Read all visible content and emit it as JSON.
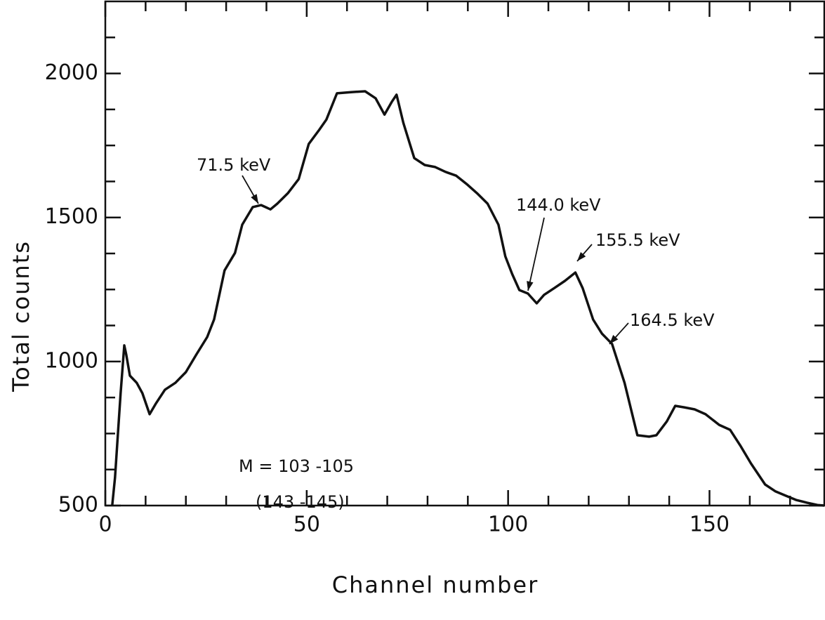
{
  "chart_data": {
    "type": "line",
    "x_label": "Channel number",
    "y_label": "Total counts",
    "annotations": [
      "71.5 keV",
      "144.0 keV",
      "155.5 keV",
      "164.5 keV",
      "M = 103 -105",
      "(143 -145)"
    ],
    "x": [
      1.7,
      2.4,
      3.1,
      3.8,
      4.7,
      5.2,
      6.1,
      7.8,
      9.2,
      11.0,
      12.5,
      14.8,
      17.4,
      20.0,
      22.6,
      25.3,
      27.0,
      29.6,
      32.2,
      34.0,
      36.6,
      38.7,
      41.0,
      42.7,
      45.3,
      48.0,
      50.5,
      53.1,
      54.9,
      57.5,
      61.0,
      64.5,
      67.1,
      69.3,
      71.1,
      72.3,
      74.0,
      76.7,
      79.3,
      81.9,
      84.5,
      87.1,
      89.7,
      92.3,
      94.9,
      97.6,
      99.3,
      101.0,
      102.8,
      104.9,
      107.1,
      108.9,
      111.5,
      114.1,
      116.7,
      118.5,
      121.1,
      123.3,
      125.8,
      128.9,
      132.1,
      135.0,
      136.8,
      139.4,
      141.5,
      143.7,
      146.3,
      149.0,
      152.4,
      155.1,
      157.7,
      160.3,
      163.8,
      166.4,
      169.0,
      171.6,
      174.2,
      176.8,
      178.5
    ],
    "series": [
      {
        "name": "Total counts",
        "color": "#111111",
        "values": [
          500,
          597,
          744,
          890,
          1056,
          1024,
          951,
          926,
          890,
          817,
          853,
          902,
          926,
          963,
          1024,
          1085,
          1146,
          1316,
          1377,
          1475,
          1536,
          1543,
          1528,
          1548,
          1584,
          1633,
          1755,
          1804,
          1840,
          1931,
          1935,
          1938,
          1914,
          1857,
          1901,
          1926,
          1828,
          1706,
          1682,
          1675,
          1658,
          1645,
          1616,
          1584,
          1548,
          1475,
          1365,
          1304,
          1248,
          1236,
          1202,
          1231,
          1255,
          1280,
          1309,
          1255,
          1146,
          1097,
          1061,
          926,
          744,
          739,
          744,
          792,
          846,
          841,
          834,
          817,
          780,
          763,
          707,
          646,
          573,
          549,
          534,
          519,
          510,
          502,
          500
        ]
      }
    ],
    "xlim": [
      0,
      178.5
    ],
    "ylim": [
      500,
      2250
    ],
    "xticks": [
      0,
      50,
      100,
      150
    ],
    "yticks": [
      500,
      1000,
      1500,
      2000
    ],
    "xminor": [
      10,
      20,
      30,
      40,
      60,
      70,
      80,
      90,
      110,
      120,
      130,
      140,
      160,
      170
    ],
    "yminor": [
      625,
      750,
      875,
      1125,
      1250,
      1375,
      1625,
      1750,
      1875,
      2125
    ]
  }
}
